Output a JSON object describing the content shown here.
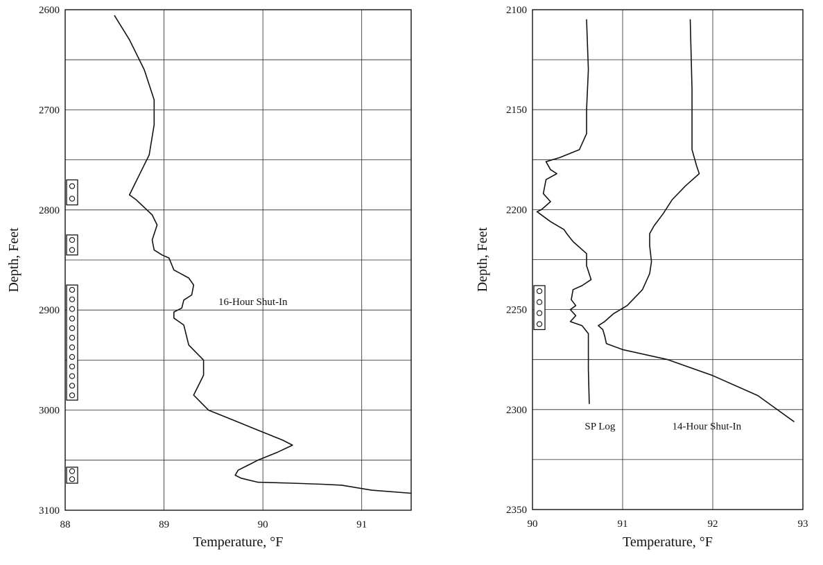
{
  "chart_data": [
    {
      "type": "line",
      "xlabel": "Temperature, °F",
      "ylabel": "Depth, Feet",
      "xlim": [
        88,
        91.5
      ],
      "ylim": [
        3100,
        2600
      ],
      "y_inverted": true,
      "x_ticks": [
        88,
        89,
        90,
        91
      ],
      "y_ticks": [
        2600,
        2700,
        2800,
        2900,
        3000,
        3100
      ],
      "grid": {
        "horizontal_every": 50,
        "vertical_every": 1
      },
      "series": [
        {
          "name": "16-Hour Shut-In",
          "points": [
            [
              88.5,
              2606
            ],
            [
              88.65,
              2630
            ],
            [
              88.8,
              2660
            ],
            [
              88.9,
              2690
            ],
            [
              88.9,
              2715
            ],
            [
              88.85,
              2745
            ],
            [
              88.75,
              2765
            ],
            [
              88.65,
              2785
            ],
            [
              88.72,
              2790
            ],
            [
              88.88,
              2805
            ],
            [
              88.93,
              2815
            ],
            [
              88.88,
              2830
            ],
            [
              88.9,
              2840
            ],
            [
              88.98,
              2845
            ],
            [
              89.05,
              2848
            ],
            [
              89.1,
              2860
            ],
            [
              89.25,
              2868
            ],
            [
              89.3,
              2875
            ],
            [
              89.28,
              2885
            ],
            [
              89.2,
              2890
            ],
            [
              89.18,
              2898
            ],
            [
              89.1,
              2902
            ],
            [
              89.1,
              2908
            ],
            [
              89.2,
              2915
            ],
            [
              89.25,
              2935
            ],
            [
              89.4,
              2950
            ],
            [
              89.4,
              2965
            ],
            [
              89.35,
              2975
            ],
            [
              89.3,
              2985
            ],
            [
              89.45,
              3000
            ],
            [
              89.7,
              3010
            ],
            [
              89.95,
              3020
            ],
            [
              90.2,
              3030
            ],
            [
              90.3,
              3035
            ],
            [
              90.15,
              3042
            ],
            [
              89.95,
              3050
            ],
            [
              89.85,
              3055
            ],
            [
              89.75,
              3060
            ],
            [
              89.72,
              3065
            ],
            [
              89.78,
              3068
            ],
            [
              89.95,
              3072
            ],
            [
              90.3,
              3073
            ],
            [
              90.6,
              3074
            ],
            [
              90.8,
              3075
            ],
            [
              91.1,
              3080
            ],
            [
              91.5,
              3083
            ]
          ]
        }
      ],
      "annotations": [
        {
          "text": "16-Hour Shut-In",
          "x": 89.55,
          "y": 2895
        }
      ],
      "perforations": [
        {
          "top": 2770,
          "bottom": 2795,
          "holes": 2
        },
        {
          "top": 2825,
          "bottom": 2845,
          "holes": 2
        },
        {
          "top": 2875,
          "bottom": 2990,
          "holes": 12
        },
        {
          "top": 3057,
          "bottom": 3073,
          "holes": 2
        }
      ]
    },
    {
      "type": "line",
      "xlabel": "Temperature, °F",
      "ylabel": "Depth, Feet",
      "xlim": [
        90,
        93
      ],
      "ylim": [
        2350,
        2100
      ],
      "y_inverted": true,
      "x_ticks": [
        90,
        91,
        92,
        93
      ],
      "y_ticks": [
        2100,
        2150,
        2200,
        2250,
        2300,
        2350
      ],
      "grid": {
        "horizontal_every": 25,
        "vertical_every": 1
      },
      "series": [
        {
          "name": "SP Log",
          "points": [
            [
              90.6,
              2105
            ],
            [
              90.62,
              2130
            ],
            [
              90.6,
              2150
            ],
            [
              90.6,
              2162
            ],
            [
              90.52,
              2170
            ],
            [
              90.3,
              2174
            ],
            [
              90.15,
              2176
            ],
            [
              90.2,
              2180
            ],
            [
              90.27,
              2182
            ],
            [
              90.15,
              2185
            ],
            [
              90.12,
              2192
            ],
            [
              90.2,
              2196
            ],
            [
              90.1,
              2200
            ],
            [
              90.05,
              2201
            ],
            [
              90.2,
              2206
            ],
            [
              90.35,
              2210
            ],
            [
              90.38,
              2212
            ],
            [
              90.45,
              2216
            ],
            [
              90.6,
              2222
            ],
            [
              90.6,
              2228
            ],
            [
              90.65,
              2235
            ],
            [
              90.55,
              2238
            ],
            [
              90.45,
              2240
            ],
            [
              90.43,
              2245
            ],
            [
              90.48,
              2248
            ],
            [
              90.42,
              2250
            ],
            [
              90.48,
              2253
            ],
            [
              90.42,
              2256
            ],
            [
              90.55,
              2258
            ],
            [
              90.62,
              2262
            ],
            [
              90.62,
              2280
            ],
            [
              90.63,
              2297
            ]
          ]
        },
        {
          "name": "14-Hour Shut-In",
          "points": [
            [
              91.75,
              2105
            ],
            [
              91.77,
              2140
            ],
            [
              91.77,
              2170
            ],
            [
              91.82,
              2178
            ],
            [
              91.85,
              2182
            ],
            [
              91.7,
              2188
            ],
            [
              91.55,
              2195
            ],
            [
              91.45,
              2202
            ],
            [
              91.35,
              2208
            ],
            [
              91.3,
              2212
            ],
            [
              91.3,
              2218
            ],
            [
              91.32,
              2226
            ],
            [
              91.3,
              2232
            ],
            [
              91.22,
              2240
            ],
            [
              91.05,
              2248
            ],
            [
              90.9,
              2252
            ],
            [
              90.8,
              2256
            ],
            [
              90.73,
              2258
            ],
            [
              90.78,
              2260
            ],
            [
              90.8,
              2263
            ],
            [
              90.82,
              2267
            ],
            [
              91.0,
              2270
            ],
            [
              91.5,
              2275
            ],
            [
              92.0,
              2283
            ],
            [
              92.5,
              2293
            ],
            [
              92.9,
              2306
            ]
          ]
        }
      ],
      "annotations": [
        {
          "text": "SP Log",
          "x": 90.58,
          "y": 2310
        },
        {
          "text": "14-Hour Shut-In",
          "x": 91.55,
          "y": 2310
        }
      ],
      "perforations": [
        {
          "top": 2238,
          "bottom": 2260,
          "holes": 4
        }
      ]
    }
  ]
}
